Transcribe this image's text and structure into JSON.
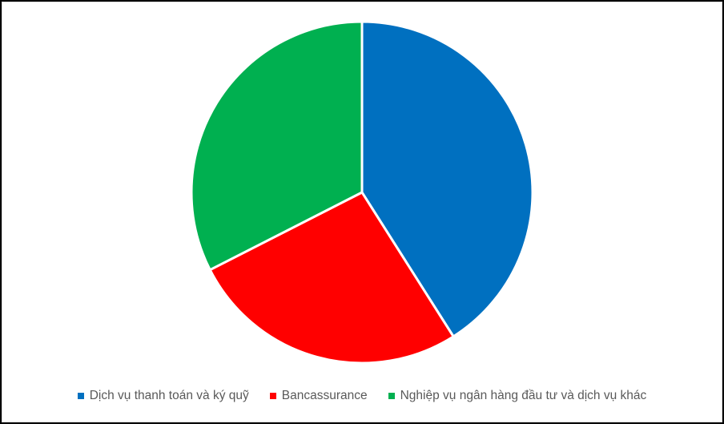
{
  "chart_data": {
    "type": "pie",
    "title": "",
    "legend_position": "bottom",
    "start_angle_deg": 0,
    "direction": "clockwise",
    "background_color": "#FFFFFF",
    "separator_color": "#FFFFFF",
    "legend_text_color": "#595959",
    "slices": [
      {
        "label": "Dịch vụ thanh toán và ký quỹ",
        "percent": 41,
        "color": "#0070C0"
      },
      {
        "label": "Bancassurance",
        "percent": 26.5,
        "color": "#FF0000"
      },
      {
        "label": "Nghiệp vụ ngân hàng đầu tư và dịch vụ khác",
        "percent": 32.5,
        "color": "#00B050"
      }
    ]
  }
}
